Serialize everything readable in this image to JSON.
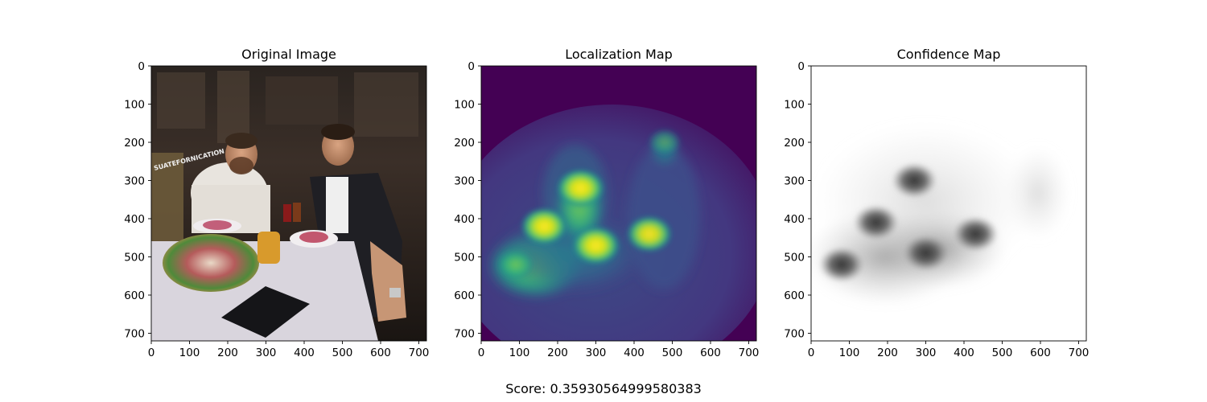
{
  "figure": {
    "score_text": "Score: 0.35930564999580383"
  },
  "chart_data": [
    {
      "type": "heatmap",
      "title": "Original Image",
      "xlim": [
        0,
        720
      ],
      "ylim": [
        720,
        0
      ],
      "xticks": [
        0,
        100,
        200,
        300,
        400,
        500,
        600,
        700
      ],
      "yticks": [
        0,
        100,
        200,
        300,
        400,
        500,
        600,
        700
      ],
      "overlay_text": "SUATEFORNICATION",
      "content": "photograph"
    },
    {
      "type": "heatmap",
      "title": "Localization Map",
      "colormap": "viridis",
      "xlim": [
        0,
        720
      ],
      "ylim": [
        720,
        0
      ],
      "xticks": [
        0,
        100,
        200,
        300,
        400,
        500,
        600,
        700
      ],
      "yticks": [
        0,
        100,
        200,
        300,
        400,
        500,
        600,
        700
      ],
      "hotspots": [
        {
          "x": 260,
          "y": 320,
          "intensity": 0.9
        },
        {
          "x": 165,
          "y": 420,
          "intensity": 0.85
        },
        {
          "x": 300,
          "y": 470,
          "intensity": 0.9
        },
        {
          "x": 440,
          "y": 440,
          "intensity": 0.8
        },
        {
          "x": 90,
          "y": 520,
          "intensity": 0.6
        },
        {
          "x": 480,
          "y": 200,
          "intensity": 0.35
        }
      ]
    },
    {
      "type": "heatmap",
      "title": "Confidence Map",
      "colormap": "gray",
      "xlim": [
        0,
        720
      ],
      "ylim": [
        720,
        0
      ],
      "xticks": [
        0,
        100,
        200,
        300,
        400,
        500,
        600,
        700
      ],
      "yticks": [
        0,
        100,
        200,
        300,
        400,
        500,
        600,
        700
      ],
      "dark_regions": [
        {
          "x": 270,
          "y": 300
        },
        {
          "x": 170,
          "y": 410
        },
        {
          "x": 80,
          "y": 520
        },
        {
          "x": 430,
          "y": 440
        },
        {
          "x": 300,
          "y": 490
        }
      ]
    }
  ]
}
